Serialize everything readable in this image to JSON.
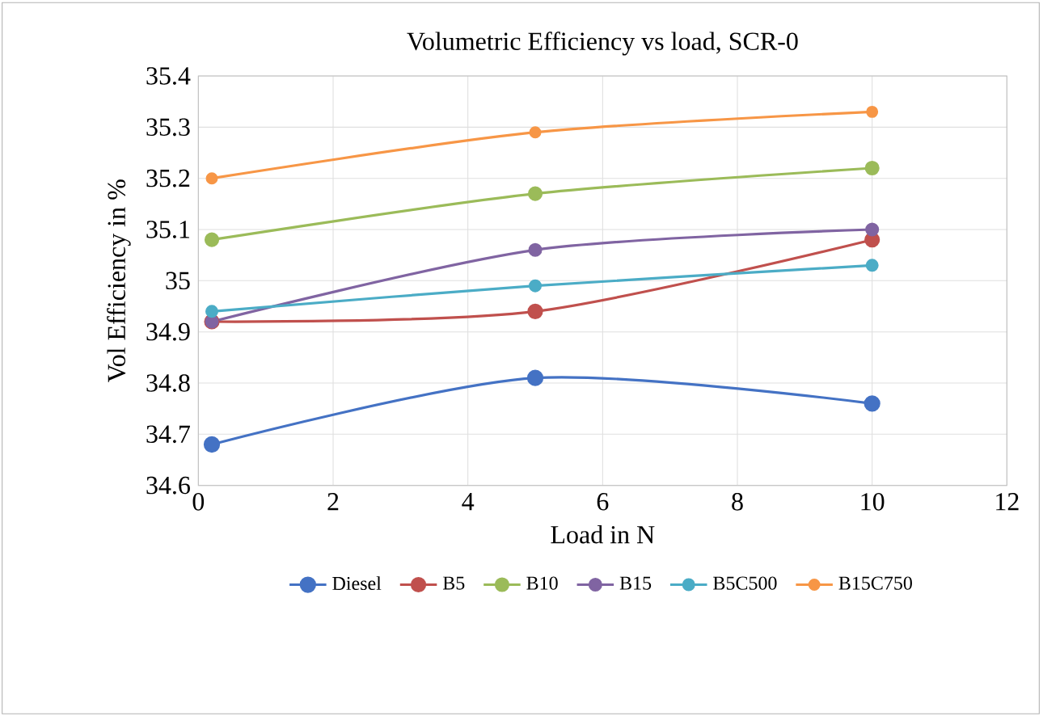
{
  "chart_data": {
    "type": "line",
    "title": "Volumetric Efficiency vs load, SCR-0",
    "xlabel": "Load in N",
    "ylabel": "Vol Efficiency in %",
    "xlim": [
      0,
      12
    ],
    "xticks": [
      0,
      2,
      4,
      6,
      8,
      10,
      12
    ],
    "ylim": [
      34.6,
      35.4
    ],
    "yticks": [
      34.6,
      34.7,
      34.8,
      34.9,
      35,
      35.1,
      35.2,
      35.3,
      35.4
    ],
    "grid": true,
    "legend": "bottom",
    "marker": "circle",
    "line_style": "solid",
    "series": [
      {
        "name": "Diesel",
        "color": "#4472c4",
        "x": [
          0.2,
          5,
          10
        ],
        "values": [
          34.68,
          34.81,
          34.76
        ]
      },
      {
        "name": "B5",
        "color": "#c0504d",
        "x": [
          0.2,
          5,
          10
        ],
        "values": [
          34.92,
          34.94,
          35.08
        ]
      },
      {
        "name": "B10",
        "color": "#9bbb59",
        "x": [
          0.2,
          5,
          10
        ],
        "values": [
          35.08,
          35.17,
          35.22
        ]
      },
      {
        "name": "B15",
        "color": "#8064a2",
        "x": [
          0.2,
          5,
          10
        ],
        "values": [
          34.92,
          35.06,
          35.1
        ]
      },
      {
        "name": "B5C500",
        "color": "#4bacc6",
        "x": [
          0.2,
          5,
          10
        ],
        "values": [
          34.94,
          34.99,
          35.03
        ]
      },
      {
        "name": "B15C750",
        "color": "#f79646",
        "x": [
          0.2,
          5,
          10
        ],
        "values": [
          35.2,
          35.29,
          35.33
        ]
      }
    ]
  }
}
